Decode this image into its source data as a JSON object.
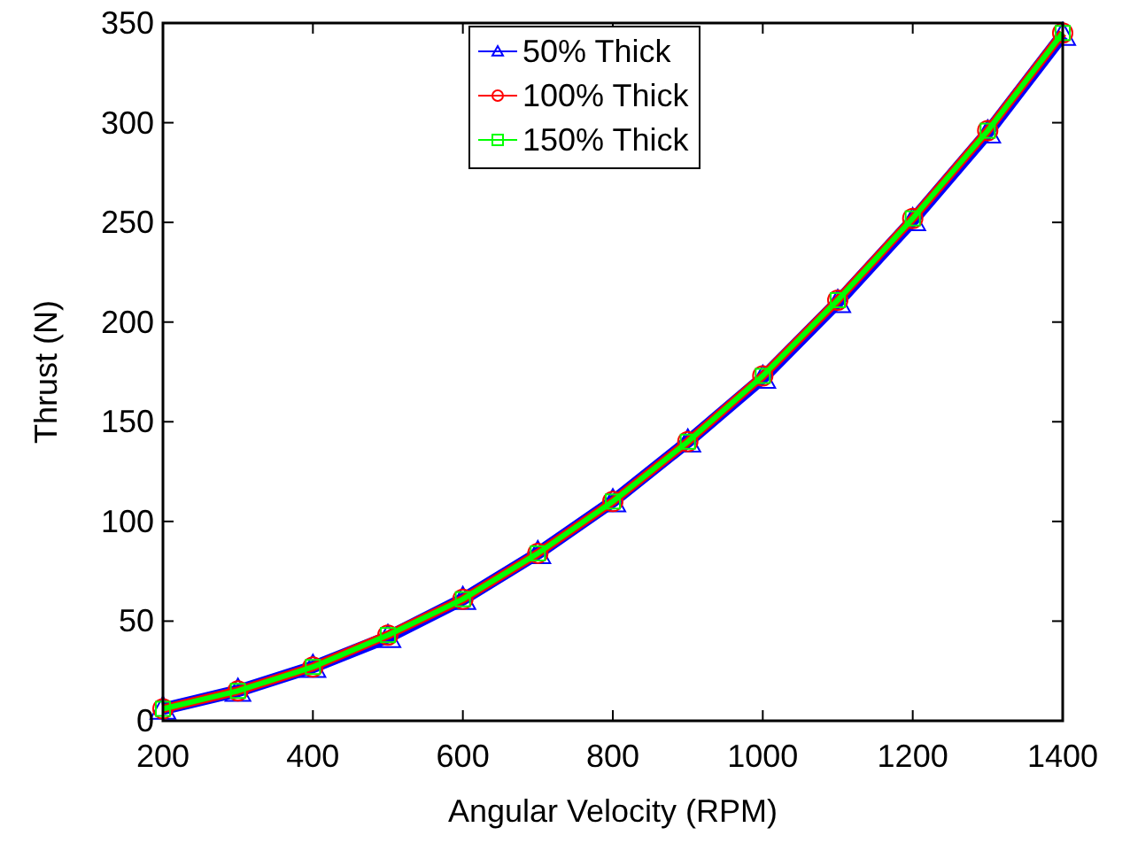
{
  "chart_data": {
    "type": "line",
    "xlabel": "Angular Velocity (RPM)",
    "ylabel": "Thrust (N)",
    "x": [
      200,
      300,
      400,
      500,
      600,
      700,
      800,
      900,
      1000,
      1100,
      1200,
      1300,
      1400
    ],
    "xlim": [
      200,
      1400
    ],
    "xticks": [
      200,
      400,
      600,
      800,
      1000,
      1200,
      1400
    ],
    "ylim": [
      0,
      350
    ],
    "yticks": [
      0,
      50,
      100,
      150,
      200,
      250,
      300,
      350
    ],
    "grid": false,
    "legend": "top",
    "series": [
      {
        "name": "50% Thick",
        "color": "#0000ff",
        "marker": "triangle",
        "values": [
          6,
          15,
          27,
          42,
          61,
          84,
          110,
          140,
          172,
          210,
          251,
          295,
          344
        ]
      },
      {
        "name": "100% Thick",
        "color": "#ff0000",
        "marker": "circle",
        "values": [
          6,
          15,
          27,
          43,
          61,
          84,
          110,
          140,
          173,
          211,
          252,
          296,
          345
        ]
      },
      {
        "name": "150% Thick",
        "color": "#00ff00",
        "marker": "square",
        "values": [
          6,
          15,
          27,
          43,
          61,
          84,
          110,
          140,
          173,
          211,
          252,
          296,
          345
        ]
      }
    ]
  }
}
